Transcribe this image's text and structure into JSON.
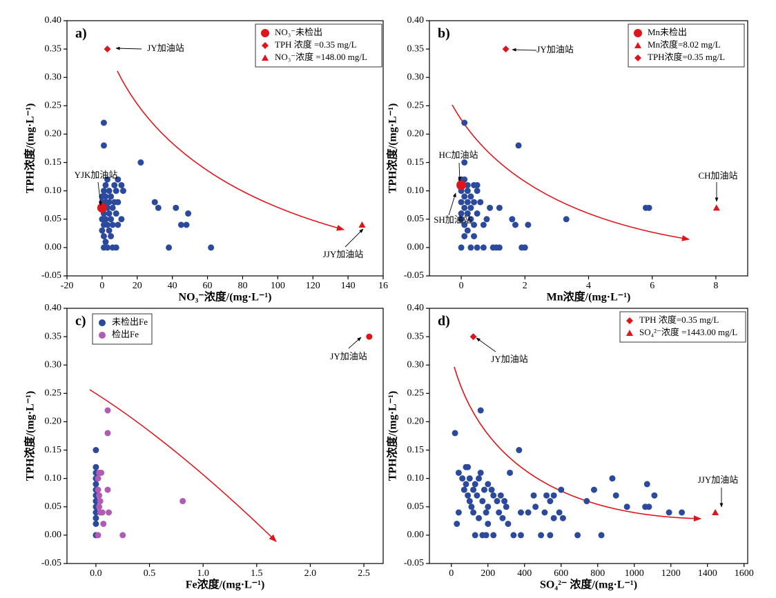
{
  "chart_data": [
    {
      "type": "scatter",
      "label": "a)",
      "xlabel": "NO₃⁻浓度/(mg·L⁻¹)",
      "ylabel": "TPH浓度/(mg·L⁻¹)",
      "xlim": [
        -20,
        160
      ],
      "ylim": [
        -0.05,
        0.4
      ],
      "xticks": [
        -20,
        0,
        20,
        40,
        60,
        80,
        100,
        120,
        140,
        {
          "value": 160,
          "label": "16"
        }
      ],
      "yticks": [
        {
          "value": 0.4,
          "label": "0.40"
        },
        0.35,
        {
          "value": 0.3,
          "label": "0.30"
        },
        0.25,
        {
          "value": 0.2,
          "label": "0.20"
        },
        0.15,
        {
          "value": 0.1,
          "label": "0.10"
        },
        0.05,
        {
          "value": 0,
          "label": "0.00"
        },
        -0.05
      ],
      "legend": "upper right",
      "series": [
        {
          "color": "#2c4a9b",
          "marker": "circle",
          "x": [
            1,
            1,
            22,
            2,
            3,
            7,
            9,
            11,
            12,
            1,
            4,
            8,
            0,
            2,
            5,
            0,
            2,
            4,
            7,
            9,
            30,
            32,
            42,
            0,
            3,
            6,
            1,
            4,
            8,
            49,
            0,
            2,
            5,
            11,
            1,
            3,
            6,
            9,
            45,
            48,
            0,
            4,
            1,
            5,
            2,
            1,
            3,
            6,
            8,
            38,
            62
          ],
          "values": [
            0.22,
            0.18,
            0.15,
            0.11,
            0.12,
            0.11,
            0.12,
            0.11,
            0.1,
            0.1,
            0.1,
            0.1,
            0.09,
            0.09,
            0.09,
            0.08,
            0.08,
            0.08,
            0.08,
            0.08,
            0.08,
            0.07,
            0.07,
            0.07,
            0.07,
            0.07,
            0.06,
            0.06,
            0.06,
            0.06,
            0.05,
            0.05,
            0.05,
            0.05,
            0.04,
            0.04,
            0.04,
            0.04,
            0.04,
            0.04,
            0.03,
            0.03,
            0.02,
            0.02,
            0.01,
            0,
            0,
            0,
            0,
            0,
            0
          ]
        },
        {
          "name": "NO₃⁻未检出",
          "color": "#e0141b",
          "marker": "circle",
          "x": [
            0
          ],
          "values": [
            0.07
          ]
        },
        {
          "name": "TPH 浓度 =0.35 mg/L",
          "color": "#e0141b",
          "marker": "diamond",
          "x": [
            3
          ],
          "values": [
            0.35
          ]
        },
        {
          "name": "NO₃⁻浓度 =148.00 mg/L",
          "color": "#e0141b",
          "marker": "triangle",
          "x": [
            148
          ],
          "values": [
            0.04
          ]
        }
      ],
      "annotations": [
        "JY加油站",
        "YJK加油站",
        "JJY加油站"
      ]
    },
    {
      "type": "scatter",
      "label": "b)",
      "xlabel": "Mn浓度/(mg·L⁻¹)",
      "ylabel": "TPH浓度/(mg·L⁻¹)",
      "xlim": [
        -1,
        9
      ],
      "ylim": [
        -0.05,
        0.4
      ],
      "xticks": [
        0,
        2,
        4,
        6,
        8
      ],
      "yticks": [
        {
          "value": 0.4,
          "label": "0.40"
        },
        0.35,
        {
          "value": 0.3,
          "label": "0.30"
        },
        0.25,
        {
          "value": 0.2,
          "label": "0.20"
        },
        0.15,
        {
          "value": 0.1,
          "label": "0.10"
        },
        0.05,
        {
          "value": 0,
          "label": "0.00"
        },
        -0.05
      ],
      "legend": "upper right",
      "series": [
        {
          "color": "#2c4a9b",
          "marker": "circle",
          "x": [
            0.1,
            1.8,
            0.1,
            0,
            0.1,
            0.2,
            0.4,
            0.5,
            0,
            0.2,
            0.5,
            0.1,
            0.3,
            0,
            0.2,
            0.4,
            0.6,
            0.1,
            0.3,
            0.9,
            1.2,
            1.7,
            5.8,
            5.9,
            0,
            0.2,
            0.5,
            0.8,
            1.6,
            3.3,
            0,
            0.3,
            0.1,
            0.4,
            0.7,
            2.1,
            0.2,
            0.1,
            0.4,
            0,
            0.3,
            0.5,
            0.7,
            1,
            1.1,
            1.2,
            1.9,
            2
          ],
          "values": [
            0.22,
            0.18,
            0.15,
            0.12,
            0.12,
            0.11,
            0.11,
            0.11,
            0.1,
            0.1,
            0.1,
            0.09,
            0.09,
            0.08,
            0.08,
            0.08,
            0.08,
            0.07,
            0.07,
            0.07,
            0.07,
            0.04,
            0.07,
            0.07,
            0.06,
            0.06,
            0.06,
            0.05,
            0.05,
            0.05,
            0.05,
            0.05,
            0.04,
            0.04,
            0.04,
            0.04,
            0.03,
            0.02,
            0.02,
            0,
            0,
            0,
            0,
            0,
            0,
            0,
            0,
            0
          ]
        },
        {
          "name": "Mn未检出",
          "color": "#e0141b",
          "marker": "circle",
          "x": [
            0
          ],
          "values": [
            0.11
          ]
        },
        {
          "name": "Mn浓度=8.02 mg/L",
          "color": "#e0141b",
          "marker": "triangle",
          "x": [
            8.02
          ],
          "values": [
            0.07
          ]
        },
        {
          "name": "TPH浓度=0.35 mg/L",
          "color": "#e0141b",
          "marker": "diamond",
          "x": [
            1.4
          ],
          "values": [
            0.35
          ]
        }
      ],
      "annotations": [
        "JY加油站",
        "HC加油站",
        "SH加油站",
        "CH加油站"
      ]
    },
    {
      "type": "scatter",
      "label": "c)",
      "xlabel": "Fe浓度/(mg·L⁻¹)",
      "ylabel": "TPH浓度/(mg·L⁻¹)",
      "xlim": [
        -0.27,
        2.68
      ],
      "ylim": [
        -0.05,
        0.4
      ],
      "xticks": [
        {
          "value": 0,
          "label": "0.0"
        },
        0.5,
        {
          "value": 1,
          "label": "1.0"
        },
        1.5,
        {
          "value": 2,
          "label": "2.0"
        },
        2.5
      ],
      "yticks": [
        {
          "value": 0.4,
          "label": "0.40"
        },
        0.35,
        {
          "value": 0.3,
          "label": "0.30"
        },
        0.25,
        {
          "value": 0.2,
          "label": "0.20"
        },
        0.15,
        {
          "value": 0.1,
          "label": "0.10"
        },
        0.05,
        {
          "value": 0,
          "label": "0.00"
        },
        -0.05
      ],
      "legend": "upper left",
      "series": [
        {
          "name": "未检出Fe",
          "color": "#2c4a9b",
          "marker": "circle",
          "x": [
            0,
            0,
            0,
            0,
            0,
            0,
            0,
            0,
            0,
            0,
            0,
            0,
            0
          ],
          "values": [
            0.15,
            0.12,
            0.11,
            0.1,
            0.09,
            0.08,
            0.07,
            0.06,
            0.05,
            0.04,
            0.03,
            0.02,
            0
          ]
        },
        {
          "name": "检出Fe",
          "color": "#b05cb4",
          "marker": "circle",
          "x": [
            0.11,
            0.11,
            0.03,
            0.05,
            0.02,
            0.11,
            0.02,
            0.03,
            0.04,
            0.03,
            0.04,
            0.06,
            0.12,
            0.07,
            0.02,
            0.25,
            0.81
          ],
          "values": [
            0.22,
            0.18,
            0.11,
            0.11,
            0.1,
            0.08,
            0.08,
            0.07,
            0.06,
            0.05,
            0.04,
            0.04,
            0.04,
            0.02,
            0,
            0,
            0.06
          ]
        },
        {
          "color": "#e0141b",
          "marker": "circle",
          "x": [
            2.55
          ],
          "values": [
            0.35
          ]
        }
      ],
      "annotations": [
        "JY加油站"
      ]
    },
    {
      "type": "scatter",
      "label": "d)",
      "xlabel": "SO₄²⁻ 浓度/(mg·L⁻¹)",
      "ylabel": "TPH浓度/(mg·L⁻¹)",
      "xlim": [
        -120,
        1620
      ],
      "ylim": [
        -0.05,
        0.4
      ],
      "xticks": [
        0,
        200,
        400,
        600,
        800,
        1000,
        1200,
        1400,
        1600
      ],
      "yticks": [
        {
          "value": 0.4,
          "label": "0.40"
        },
        0.35,
        {
          "value": 0.3,
          "label": "0.30"
        },
        0.25,
        {
          "value": 0.2,
          "label": "0.20"
        },
        0.15,
        {
          "value": 0.1,
          "label": "0.10"
        },
        0.05,
        {
          "value": 0,
          "label": "0.00"
        },
        -0.05
      ],
      "legend": "upper right",
      "series": [
        {
          "color": "#2c4a9b",
          "marker": "circle",
          "x": [
            20,
            160,
            370,
            80,
            90,
            40,
            160,
            320,
            60,
            100,
            150,
            880,
            80,
            130,
            200,
            1070,
            70,
            120,
            180,
            220,
            600,
            780,
            90,
            140,
            230,
            270,
            450,
            520,
            560,
            900,
            1110,
            100,
            170,
            250,
            290,
            540,
            740,
            110,
            200,
            300,
            460,
            960,
            1060,
            1080,
            40,
            120,
            190,
            260,
            380,
            420,
            510,
            590,
            1190,
            1260,
            150,
            280,
            560,
            610,
            30,
            200,
            310,
            130,
            170,
            190,
            230,
            340,
            380,
            490,
            540,
            690,
            820
          ],
          "values": [
            0.18,
            0.22,
            0.15,
            0.12,
            0.12,
            0.11,
            0.11,
            0.11,
            0.1,
            0.1,
            0.1,
            0.1,
            0.09,
            0.09,
            0.09,
            0.09,
            0.08,
            0.08,
            0.08,
            0.08,
            0.08,
            0.08,
            0.07,
            0.07,
            0.07,
            0.07,
            0.07,
            0.07,
            0.07,
            0.07,
            0.07,
            0.06,
            0.06,
            0.06,
            0.06,
            0.06,
            0.06,
            0.05,
            0.05,
            0.05,
            0.05,
            0.05,
            0.05,
            0.05,
            0.04,
            0.04,
            0.04,
            0.04,
            0.04,
            0.04,
            0.04,
            0.04,
            0.04,
            0.04,
            0.03,
            0.03,
            0.03,
            0.03,
            0.02,
            0.02,
            0.02,
            0,
            0,
            0,
            0,
            0,
            0,
            0,
            0,
            0,
            0
          ]
        },
        {
          "name": "TPH 浓度=0.35 mg/L",
          "color": "#e0141b",
          "marker": "diamond",
          "x": [
            120
          ],
          "values": [
            0.35
          ]
        },
        {
          "name": "SO₄²⁻浓度 =1443.00 mg/L",
          "color": "#e0141b",
          "marker": "triangle",
          "x": [
            1443
          ],
          "values": [
            0.04
          ]
        }
      ],
      "annotations": [
        "JY加油站",
        "JJY加油站"
      ]
    }
  ]
}
